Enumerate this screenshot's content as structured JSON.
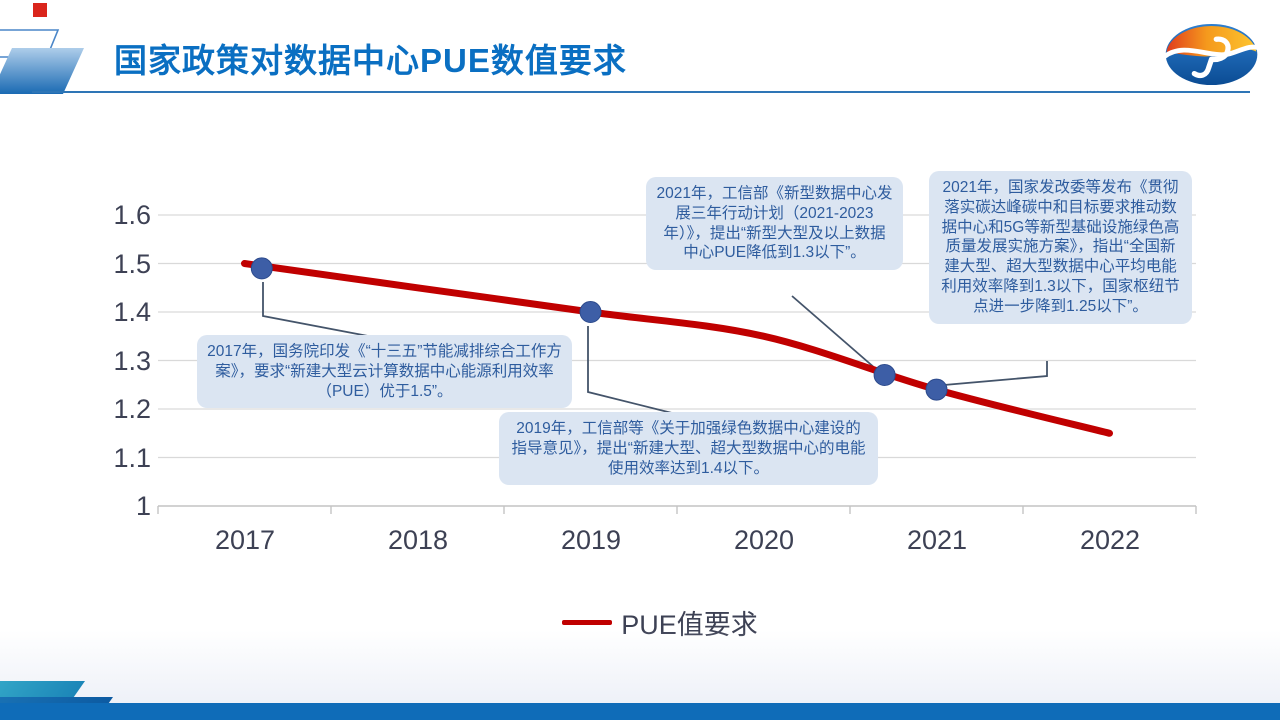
{
  "slide": {
    "title": "国家政策对数据中心PUE数值要求"
  },
  "chart_data": {
    "type": "line",
    "title": "",
    "xlabel": "",
    "ylabel": "",
    "x": [
      "2017",
      "2018",
      "2019",
      "2020",
      "2021",
      "2022"
    ],
    "series": [
      {
        "name": "PUE值要求",
        "values": [
          1.5,
          1.45,
          1.4,
          1.35,
          1.24,
          1.15
        ],
        "color": "#c00000"
      }
    ],
    "yticks": [
      "1.6",
      "1.5",
      "1.4",
      "1.3",
      "1.2",
      "1.1",
      "1"
    ],
    "ylim": [
      1.0,
      1.6
    ],
    "grid": true,
    "legend_position": "bottom",
    "markers": [
      {
        "x": 2017.1,
        "y": 1.49
      },
      {
        "x": 2019.0,
        "y": 1.4
      },
      {
        "x": 2020.7,
        "y": 1.27
      },
      {
        "x": 2021.0,
        "y": 1.24
      }
    ],
    "marker_color": "#3d5ea6",
    "grid_color": "#d9d9d9",
    "axis_color": "#c4c4c4"
  },
  "callouts": [
    {
      "id": "2017",
      "text": "2017年，国务院印发《“十三五”节能减排综合工作方案》，要求“新建大型云计算数据中心能源利用效率（PUE）优于1.5”。"
    },
    {
      "id": "2019",
      "text": "2019年，工信部等《关于加强绿色数据中心建设的指导意见》，提出“新建大型、超大型数据中心的电能使用效率达到1.4以下。"
    },
    {
      "id": "2021-miit",
      "text": "2021年，工信部《新型数据中心发展三年行动计划（2021-2023年）》，提出“新型大型及以上数据中心PUE降低到1.3以下”。"
    },
    {
      "id": "2021-ndrc",
      "text": "2021年，国家发改委等发布《贯彻落实碳达峰碳中和目标要求推动数据中心和5G等新型基础设施绿色高质量发展实施方案》，指出“全国新建大型、超大型数据中心平均电能利用效率降到1.3以下，国家枢纽节点进一步降到1.25以下”。"
    }
  ],
  "legend": {
    "label": "PUE值要求"
  },
  "colors": {
    "title": "#0a6fc2",
    "line": "#c00000",
    "marker": "#3d5ea6",
    "callout_bg": "#dbe5f2",
    "callout_text": "#2e5c9e",
    "connector": "#44546a",
    "footer_bar": "#0f6cb8"
  }
}
